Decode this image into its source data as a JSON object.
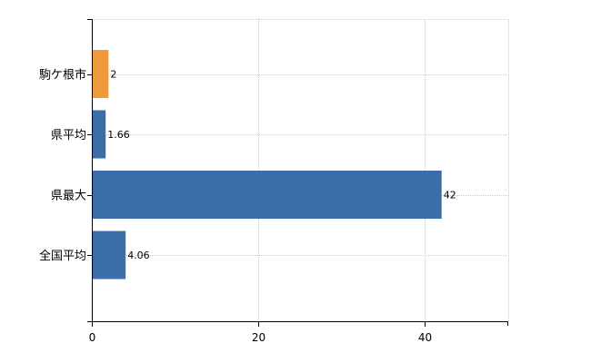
{
  "chart_data": {
    "type": "bar",
    "orientation": "horizontal",
    "categories": [
      "駒ケ根市",
      "県平均",
      "県最大",
      "全国平均"
    ],
    "values": [
      2,
      1.66,
      42,
      4.06
    ],
    "data_labels": [
      "2",
      "1.66",
      "42",
      "4.06"
    ],
    "bar_colors": [
      "#ee9a3d",
      "#3b6ea8",
      "#3b6ea8",
      "#3b6ea8"
    ],
    "xlim": [
      0,
      50
    ],
    "xticks": [
      0,
      20,
      40
    ],
    "grid": true,
    "title": "",
    "xlabel": "",
    "ylabel": ""
  }
}
